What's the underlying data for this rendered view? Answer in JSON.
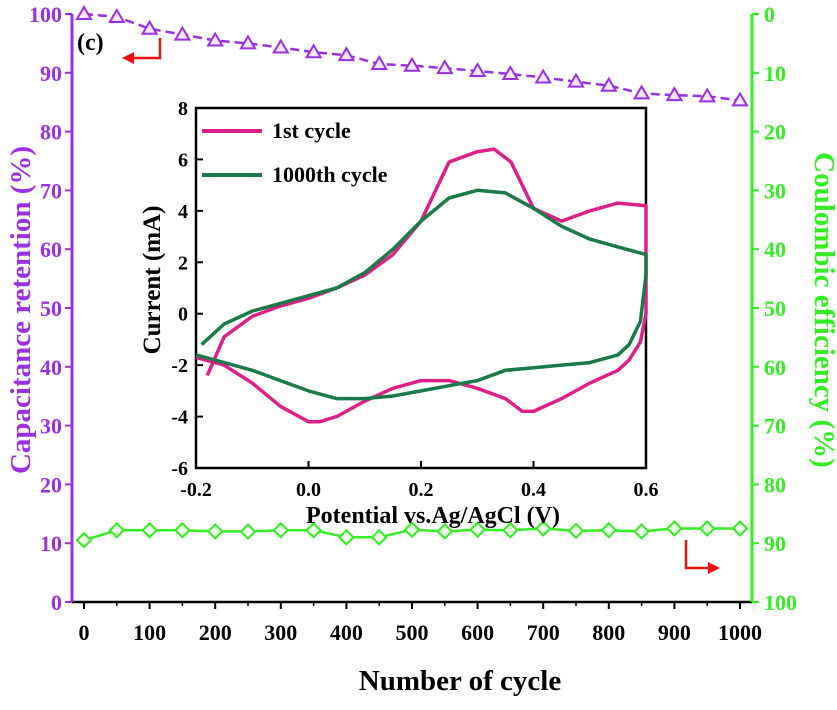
{
  "chart_data": [
    {
      "type": "line",
      "panel_label": "(c)",
      "xlabel": "Number of cycle",
      "ylabel_left": "Capacitance retention (%)",
      "ylabel_right": "Coulombic efficiency (%)",
      "xlim": [
        0,
        1000
      ],
      "ylim_left": [
        0,
        100
      ],
      "ylim_right": [
        0,
        100
      ],
      "right_axis_inverted": true,
      "x_ticks": [
        "0",
        "100",
        "200",
        "300",
        "400",
        "500",
        "600",
        "700",
        "800",
        "900",
        "1000"
      ],
      "y_ticks_left": [
        "0",
        "10",
        "20",
        "30",
        "40",
        "50",
        "60",
        "70",
        "80",
        "90",
        "100"
      ],
      "y_ticks_right": [
        "0",
        "10",
        "20",
        "30",
        "40",
        "50",
        "60",
        "70",
        "80",
        "90",
        "100"
      ],
      "colors": {
        "left": "#9b30e0",
        "right": "#33ee22",
        "arrow": "#ee1111"
      },
      "series": [
        {
          "axis": "left",
          "marker": "triangle",
          "line_style": "dashed",
          "x": [
            0,
            50,
            100,
            150,
            200,
            250,
            300,
            350,
            400,
            450,
            500,
            550,
            600,
            650,
            700,
            750,
            800,
            850,
            900,
            950,
            1000
          ],
          "values": [
            100,
            99.5,
            97.5,
            96.5,
            95.5,
            95,
            94.3,
            93.5,
            93,
            91.5,
            91.2,
            90.8,
            90.3,
            89.8,
            89.2,
            88.5,
            87.8,
            86.5,
            86.2,
            86,
            85.3
          ]
        },
        {
          "axis": "right",
          "marker": "diamond",
          "line_style": "solid",
          "x": [
            0,
            50,
            100,
            150,
            200,
            250,
            300,
            350,
            400,
            450,
            500,
            550,
            600,
            650,
            700,
            750,
            800,
            850,
            900,
            950,
            1000
          ],
          "values": [
            89.5,
            87.8,
            87.8,
            87.8,
            88,
            88,
            87.8,
            87.8,
            89,
            89,
            87.7,
            88,
            87.7,
            87.8,
            87.5,
            87.9,
            87.8,
            88,
            87.5,
            87.5,
            87.5
          ]
        }
      ]
    },
    {
      "type": "line",
      "inset": true,
      "xlabel": "Potential vs.Ag/AgCl (V)",
      "ylabel": "Current (mA)",
      "xlim": [
        -0.2,
        0.6
      ],
      "ylim": [
        -6,
        8
      ],
      "x_ticks": [
        "-0.2",
        "0.0",
        "0.2",
        "0.4",
        "0.6"
      ],
      "y_ticks": [
        "-6",
        "-4",
        "-2",
        "0",
        "2",
        "4",
        "6",
        "8"
      ],
      "legend_location": "top-left",
      "series": [
        {
          "name": "1st cycle",
          "color": "#dd1f8a",
          "x": [
            -0.18,
            -0.15,
            -0.1,
            -0.05,
            0.0,
            0.05,
            0.1,
            0.15,
            0.2,
            0.25,
            0.3,
            0.33,
            0.36,
            0.4,
            0.45,
            0.5,
            0.55,
            0.6,
            0.6,
            0.59,
            0.57,
            0.55,
            0.5,
            0.45,
            0.4,
            0.38,
            0.35,
            0.3,
            0.25,
            0.2,
            0.15,
            0.1,
            0.05,
            0.02,
            0.0,
            -0.05,
            -0.1,
            -0.15,
            -0.2
          ],
          "values": [
            -2.4,
            -0.9,
            -0.1,
            0.3,
            0.6,
            1.0,
            1.5,
            2.3,
            3.6,
            5.9,
            6.3,
            6.4,
            5.9,
            4.1,
            3.6,
            4.0,
            4.3,
            4.2,
            0.0,
            -1.1,
            -1.8,
            -2.2,
            -2.7,
            -3.3,
            -3.8,
            -3.8,
            -3.3,
            -2.9,
            -2.6,
            -2.6,
            -2.9,
            -3.4,
            -4.0,
            -4.2,
            -4.2,
            -3.6,
            -2.7,
            -2.0,
            -1.7
          ]
        },
        {
          "name": "1000th cycle",
          "color": "#1a7a48",
          "x": [
            -0.19,
            -0.15,
            -0.1,
            -0.05,
            0.0,
            0.05,
            0.1,
            0.15,
            0.2,
            0.25,
            0.3,
            0.35,
            0.4,
            0.45,
            0.5,
            0.55,
            0.6,
            0.6,
            0.59,
            0.57,
            0.55,
            0.5,
            0.45,
            0.4,
            0.35,
            0.3,
            0.25,
            0.2,
            0.15,
            0.1,
            0.05,
            0.0,
            -0.05,
            -0.1,
            -0.15,
            -0.2
          ],
          "values": [
            -1.2,
            -0.4,
            0.1,
            0.4,
            0.7,
            1.0,
            1.6,
            2.5,
            3.6,
            4.5,
            4.8,
            4.7,
            4.1,
            3.4,
            2.9,
            2.6,
            2.3,
            1.5,
            -0.3,
            -1.2,
            -1.6,
            -1.9,
            -2.0,
            -2.1,
            -2.2,
            -2.6,
            -2.8,
            -3.0,
            -3.2,
            -3.3,
            -3.3,
            -3.0,
            -2.6,
            -2.2,
            -1.9,
            -1.6
          ]
        }
      ]
    }
  ]
}
